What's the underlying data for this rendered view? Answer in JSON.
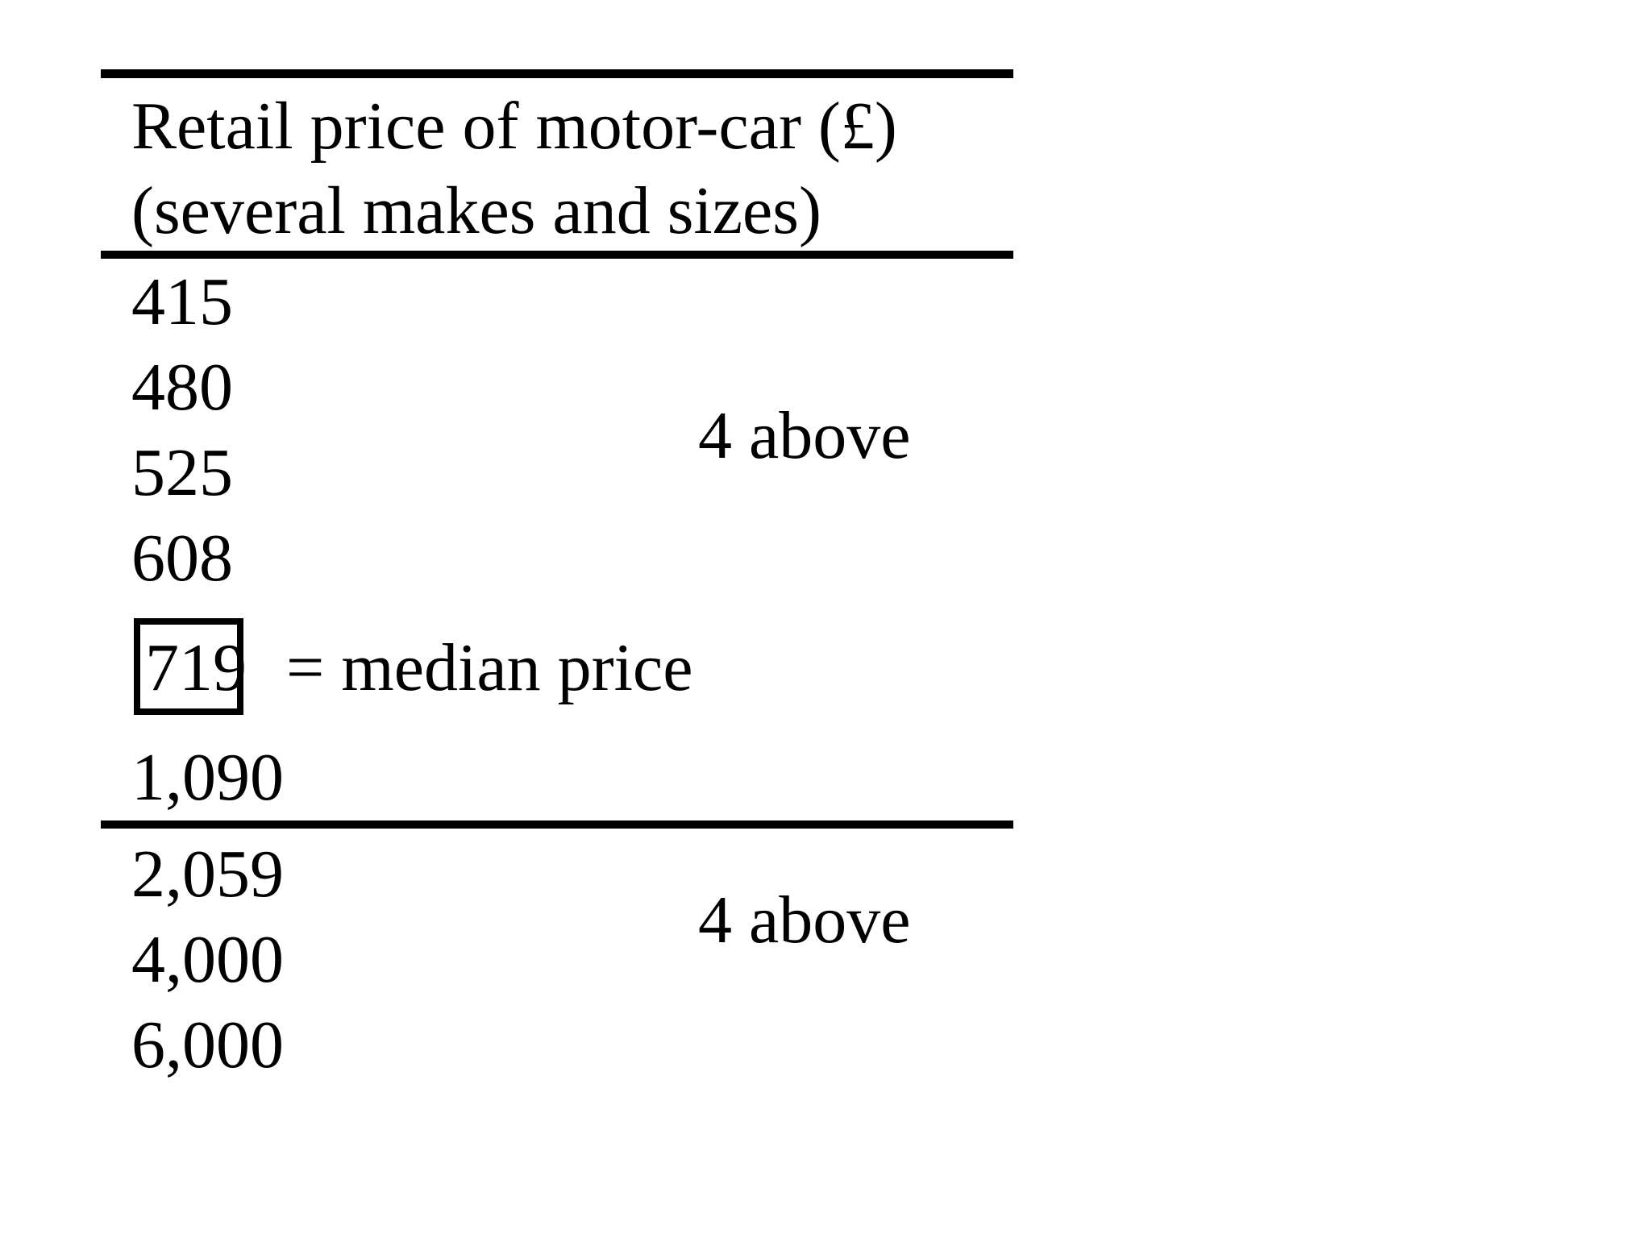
{
  "header": {
    "line1": "Retail price of motor-car (£)",
    "line2": "(several makes and sizes)"
  },
  "prices": [
    "415",
    "480",
    "525",
    "608",
    "719",
    "1,090",
    "2,059",
    "4,000",
    "6,000"
  ],
  "median": {
    "value": "719",
    "label": "= median price"
  },
  "groups": {
    "lower_label": "4 above",
    "upper_label": "4 above"
  }
}
